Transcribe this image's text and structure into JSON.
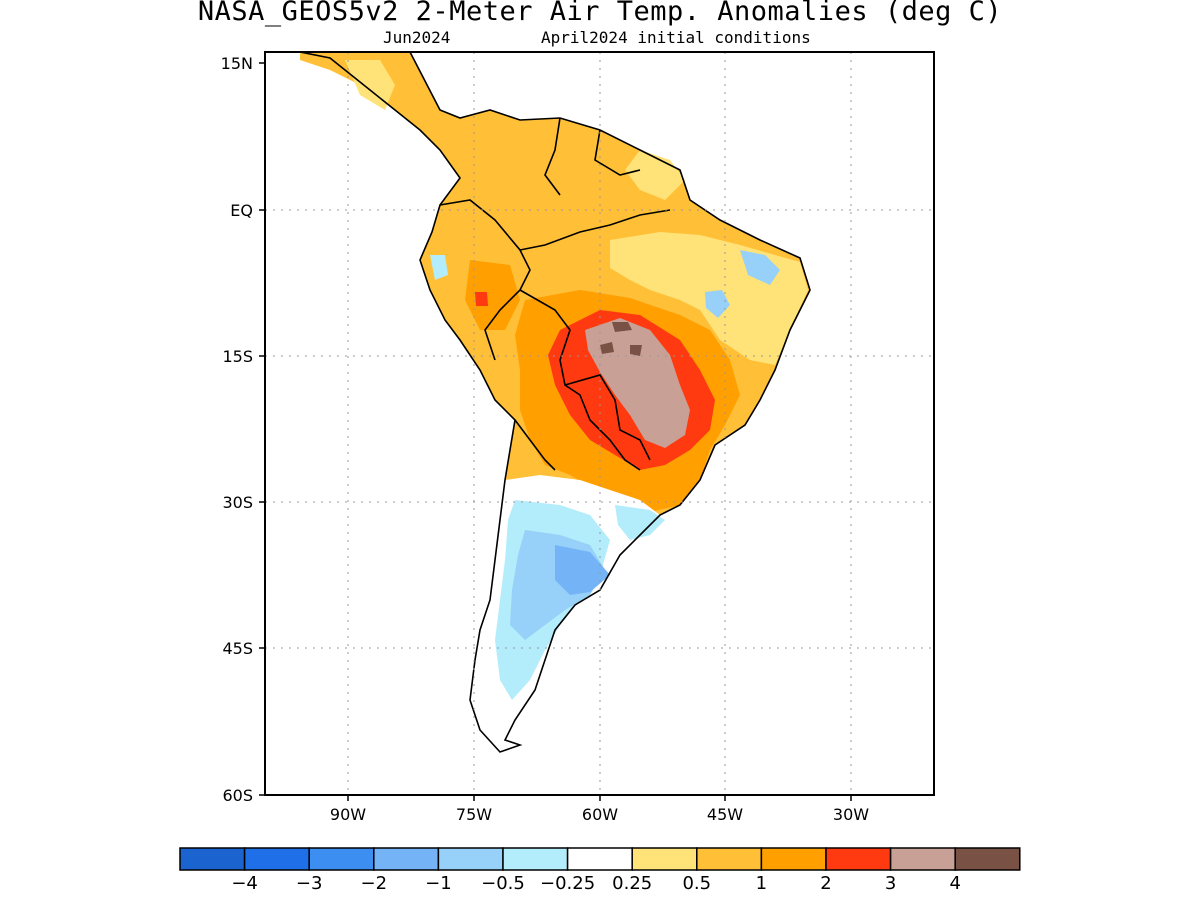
{
  "title": "NASA_GEOS5v2 2-Meter Air Temp. Anomalies (deg C)",
  "subtitle_left": "Jun2024",
  "subtitle_right": "April2024 initial conditions",
  "lat_labels": [
    "15N",
    "EQ",
    "15S",
    "30S",
    "45S",
    "60S"
  ],
  "lon_labels": [
    "90W",
    "75W",
    "60W",
    "45W",
    "30W"
  ],
  "colorbar": {
    "colors": [
      "#1b64d0",
      "#1f6fe8",
      "#3c8ef0",
      "#74b3f5",
      "#97d0f8",
      "#b3ecfa",
      "#ffffff",
      "#ffe378",
      "#ffbf37",
      "#ff9f00",
      "#ff3a10",
      "#c9a095",
      "#7a5245"
    ],
    "labels": [
      "-4",
      "-3",
      "-2",
      "-1",
      "-0.5",
      "-0.25",
      "0.25",
      "0.5",
      "1",
      "2",
      "3",
      "4"
    ]
  }
}
